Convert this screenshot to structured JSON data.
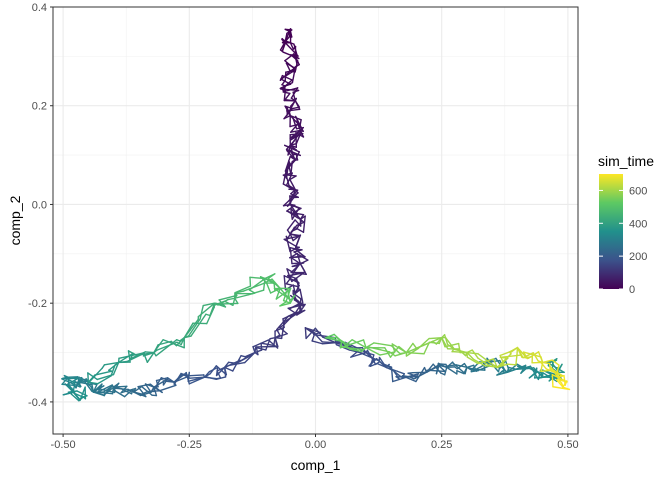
{
  "chart_data": {
    "type": "line",
    "title": "",
    "xlabel": "comp_1",
    "ylabel": "comp_2",
    "xlim": [
      -0.52,
      0.52
    ],
    "ylim": [
      -0.465,
      0.4
    ],
    "x_ticks": [
      -0.5,
      -0.25,
      0.0,
      0.25,
      0.5
    ],
    "x_tick_labels": [
      "-0.50",
      "-0.25",
      "0.00",
      "0.25",
      "0.50"
    ],
    "y_ticks": [
      -0.4,
      -0.2,
      0.0,
      0.2,
      0.4
    ],
    "y_tick_labels": [
      "-0.4",
      "-0.2",
      "0.0",
      "0.2",
      "0.4"
    ],
    "grid": true,
    "color_variable": "sim_time",
    "color_scale": "viridis",
    "color_range": [
      0,
      700
    ],
    "legend": {
      "title": "sim_time",
      "position": "right",
      "ticks": [
        0,
        200,
        400,
        600
      ],
      "tick_labels": [
        "0",
        "200",
        "400",
        "600"
      ]
    },
    "series": [
      {
        "t": [
          0,
          5,
          10,
          15,
          20,
          25,
          30,
          35,
          40,
          45,
          50,
          55,
          60,
          65,
          70,
          75,
          80,
          85,
          90,
          95,
          100
        ],
        "x": [
          -0.05,
          -0.06,
          -0.04,
          -0.05,
          -0.06,
          -0.04,
          -0.05,
          -0.03,
          -0.05,
          -0.04,
          -0.06,
          -0.04,
          -0.05,
          -0.03,
          -0.05,
          -0.04,
          -0.03,
          -0.05,
          -0.04,
          -0.03,
          -0.04
        ],
        "y": [
          0.35,
          0.33,
          0.3,
          0.27,
          0.24,
          0.21,
          0.18,
          0.15,
          0.12,
          0.09,
          0.06,
          0.03,
          0.0,
          -0.03,
          -0.06,
          -0.09,
          -0.12,
          -0.15,
          -0.18,
          -0.2,
          -0.22
        ]
      },
      {
        "t": [
          100,
          120,
          140,
          160,
          180,
          200,
          220,
          240,
          260,
          280,
          300,
          320,
          340,
          360
        ],
        "x": [
          -0.04,
          -0.08,
          -0.12,
          -0.18,
          -0.22,
          -0.28,
          -0.32,
          -0.36,
          -0.4,
          -0.44,
          -0.47,
          -0.49,
          -0.48,
          -0.46
        ],
        "y": [
          -0.22,
          -0.27,
          -0.3,
          -0.33,
          -0.35,
          -0.36,
          -0.37,
          -0.38,
          -0.37,
          -0.38,
          -0.36,
          -0.35,
          -0.38,
          -0.39
        ]
      },
      {
        "t": [
          120,
          140,
          160,
          180,
          200,
          220,
          240,
          260,
          280,
          300,
          320,
          340,
          360,
          380
        ],
        "x": [
          -0.02,
          0.04,
          0.1,
          0.14,
          0.18,
          0.22,
          0.26,
          0.3,
          0.34,
          0.38,
          0.42,
          0.45,
          0.48,
          0.47
        ],
        "y": [
          -0.25,
          -0.28,
          -0.3,
          -0.33,
          -0.35,
          -0.34,
          -0.33,
          -0.33,
          -0.32,
          -0.34,
          -0.33,
          -0.35,
          -0.34,
          -0.32
        ]
      },
      {
        "t": [
          360,
          380,
          400,
          420,
          440,
          460,
          480,
          500,
          520
        ],
        "x": [
          -0.45,
          -0.39,
          -0.32,
          -0.26,
          -0.2,
          -0.16,
          -0.1,
          -0.07,
          -0.05
        ],
        "y": [
          -0.36,
          -0.32,
          -0.3,
          -0.27,
          -0.2,
          -0.19,
          -0.15,
          -0.17,
          -0.2
        ]
      },
      {
        "t": [
          520,
          540,
          560,
          580,
          600,
          620,
          640,
          660,
          680,
          700
        ],
        "x": [
          0.02,
          0.1,
          0.18,
          0.25,
          0.3,
          0.36,
          0.4,
          0.45,
          0.48,
          0.49
        ],
        "y": [
          -0.27,
          -0.29,
          -0.3,
          -0.27,
          -0.3,
          -0.33,
          -0.29,
          -0.32,
          -0.35,
          -0.37
        ]
      }
    ]
  }
}
